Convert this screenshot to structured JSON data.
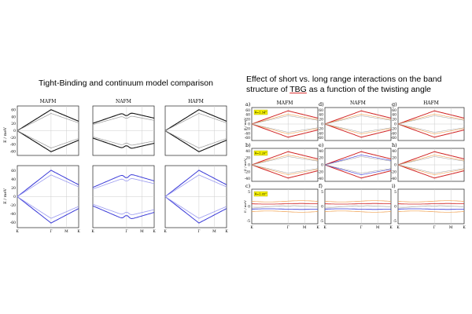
{
  "left": {
    "title": "Tight-Binding and continuum model comparison",
    "columns": [
      "MAFM",
      "NAFM",
      "HAFM"
    ],
    "ylabel": "E / meV",
    "xticks": [
      "K",
      "Γ",
      "M",
      "K"
    ],
    "top_yticks": [
      "60",
      "40",
      "20",
      "0",
      "-20",
      "-40",
      "-60"
    ],
    "bottom_yticks": [
      "60",
      "40",
      "20",
      "0",
      "-20",
      "-40",
      "-60"
    ]
  },
  "right": {
    "title_line1": "Effect of short vs. long range interactions on the band",
    "title_line2_pre": "structure of ",
    "title_line2_tbg": "TBG",
    "title_line2_post": " as a function of the twisting angle",
    "columns": [
      "MAFM",
      "NAFM",
      "HAFM"
    ],
    "ylabel": "E / meV",
    "xticks": [
      "K",
      "Γ",
      "M",
      "K"
    ],
    "panel_letters": [
      "a)",
      "b)",
      "c)",
      "d)",
      "e)",
      "f)",
      "g)",
      "h)",
      "i)"
    ],
    "angle_labels": [
      "θ=1.54°",
      "θ=1.20°",
      "θ=1.05°"
    ],
    "row_yticks": [
      [
        "60",
        "40",
        "20",
        "0",
        "-20",
        "-40",
        "-60"
      ],
      [
        "40",
        "20",
        "0",
        "-20",
        "-40"
      ],
      [
        "5",
        "0",
        "-5"
      ]
    ]
  },
  "colors": {
    "black": "#111111",
    "gray": "#999999",
    "blue": "#3a3ad8",
    "lightblue": "#9a9af0",
    "red": "#d02020",
    "orange": "#f0a050",
    "highlight": "#f5f000"
  }
}
